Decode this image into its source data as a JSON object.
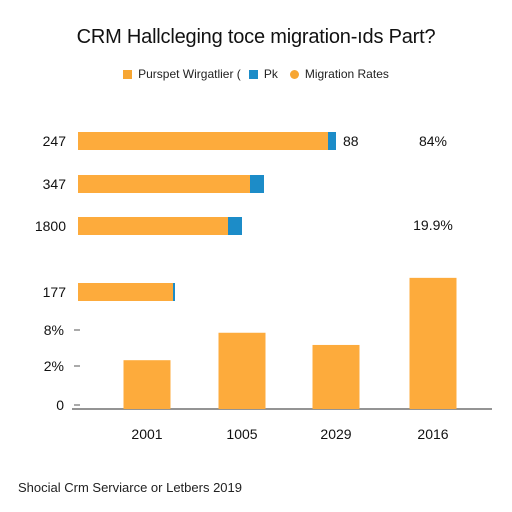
{
  "title": "CRM Hallcleging toce migration-ıds Part?",
  "legend": [
    {
      "label": "Purspet Wirgatlier (",
      "color": "#F7A633",
      "shape": "square"
    },
    {
      "label": "Pk",
      "color": "#1C8CC8",
      "shape": "square"
    },
    {
      "label": "Migration Rates",
      "color": "#F7A633",
      "shape": "circle"
    }
  ],
  "caption": "Shocial Crm Serviarce or Letbers 2019",
  "colors": {
    "bar": "#FDAB3C",
    "accent": "#1C8CC8",
    "axis": "#555555"
  },
  "chart_data": [
    {
      "type": "bar",
      "orientation": "horizontal",
      "categories": [
        "247",
        "347",
        "1800",
        "177"
      ],
      "series": [
        {
          "name": "Purspet Wirgatlier (",
          "values": [
            250,
            172,
            150,
            95
          ]
        },
        {
          "name": "Pk",
          "values": [
            8,
            14,
            14,
            2
          ]
        }
      ],
      "data_labels": [
        "88",
        "",
        "",
        ""
      ]
    },
    {
      "type": "bar",
      "orientation": "vertical",
      "categories": [
        "2001",
        "1005",
        "2029",
        "2016"
      ],
      "series": [
        {
          "name": "Migration Rates",
          "values": [
            8,
            12.5,
            10.5,
            21.5
          ]
        }
      ],
      "y_ticks": [
        "8%",
        "2%",
        "0"
      ],
      "annotations": [
        "84%",
        "19.9%"
      ],
      "ylim": [
        0,
        30
      ]
    }
  ]
}
